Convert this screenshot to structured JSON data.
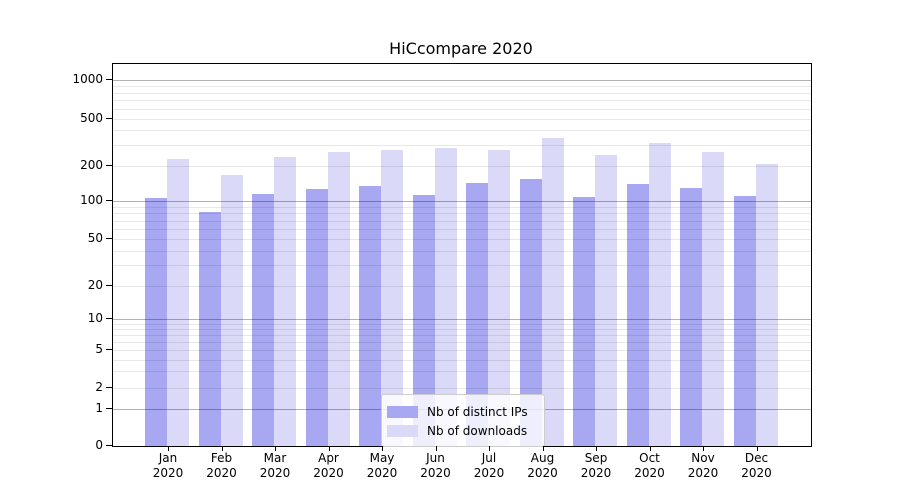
{
  "title": "HiCcompare 2020",
  "chart_data": {
    "type": "bar",
    "title": "HiCcompare 2020",
    "categories": [
      "Jan",
      "Feb",
      "Mar",
      "Apr",
      "May",
      "Jun",
      "Jul",
      "Aug",
      "Sep",
      "Oct",
      "Nov",
      "Dec"
    ],
    "year_label": "2020",
    "series": [
      {
        "name": "Nb of distinct IPs",
        "color": "#a8a8f2",
        "values": [
          106,
          83,
          115,
          127,
          137,
          113,
          146,
          158,
          110,
          141,
          130,
          112
        ]
      },
      {
        "name": "Nb of downloads",
        "color": "#dadaf8",
        "values": [
          232,
          170,
          242,
          266,
          278,
          288,
          278,
          350,
          249,
          316,
          268,
          211
        ]
      }
    ],
    "y_ticks": [
      0,
      1,
      2,
      5,
      10,
      20,
      50,
      100,
      200,
      500,
      1000
    ],
    "y_scale": "log-compressed-near-zero",
    "ylim": [
      0,
      1400
    ],
    "xlabel": "",
    "ylabel": "",
    "grid": true,
    "legend_position": "lower center"
  },
  "legend": {
    "items": [
      {
        "label": "Nb of distinct IPs",
        "color": "#a8a8f2"
      },
      {
        "label": "Nb of downloads",
        "color": "#dadaf8"
      }
    ]
  },
  "colors": {
    "background": "#ffffff",
    "axis": "#000000",
    "text": "#000000",
    "major_grid": "rgba(0,0,0,0.30)",
    "minor_grid": "rgba(0,0,0,0.09)",
    "legend_border": "#cccccc",
    "legend_bg": "rgba(255,255,255,0.8)"
  }
}
